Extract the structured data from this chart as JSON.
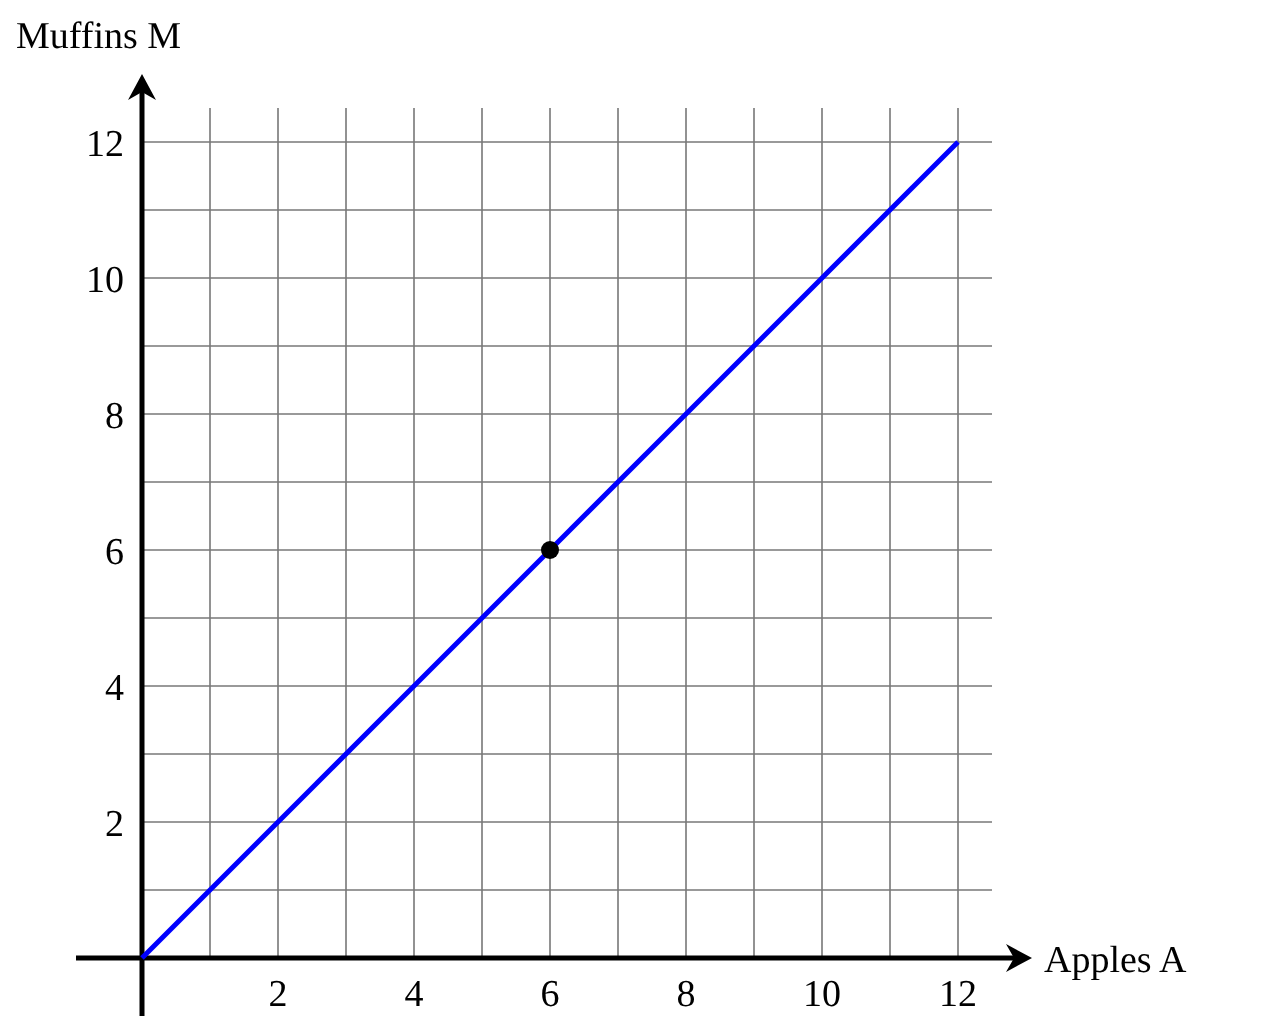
{
  "chart_data": {
    "type": "line",
    "xlabel": "Apples A",
    "ylabel": "Muffins M",
    "xlim": [
      0,
      12.5
    ],
    "ylim": [
      0,
      12.5
    ],
    "xticks": [
      {
        "value": 1,
        "label": null
      },
      2,
      {
        "value": 3,
        "label": null
      },
      4,
      {
        "value": 5,
        "label": null
      },
      6,
      {
        "value": 7,
        "label": null
      },
      8,
      {
        "value": 9,
        "label": null
      },
      10,
      {
        "value": 11,
        "label": null
      },
      12
    ],
    "yticks": [
      {
        "value": 1,
        "label": null
      },
      2,
      {
        "value": 3,
        "label": null
      },
      4,
      {
        "value": 5,
        "label": null
      },
      6,
      {
        "value": 7,
        "label": null
      },
      8,
      {
        "value": 9,
        "label": null
      },
      10,
      {
        "value": 11,
        "label": null
      },
      12
    ],
    "grid": true,
    "series": [
      {
        "color": "#0000ff",
        "x": [
          0,
          12
        ],
        "values": [
          0,
          12
        ]
      },
      {
        "type": "scatter",
        "color": "#000000",
        "marker": "circle",
        "x": [
          6
        ],
        "values": [
          6
        ]
      }
    ]
  }
}
